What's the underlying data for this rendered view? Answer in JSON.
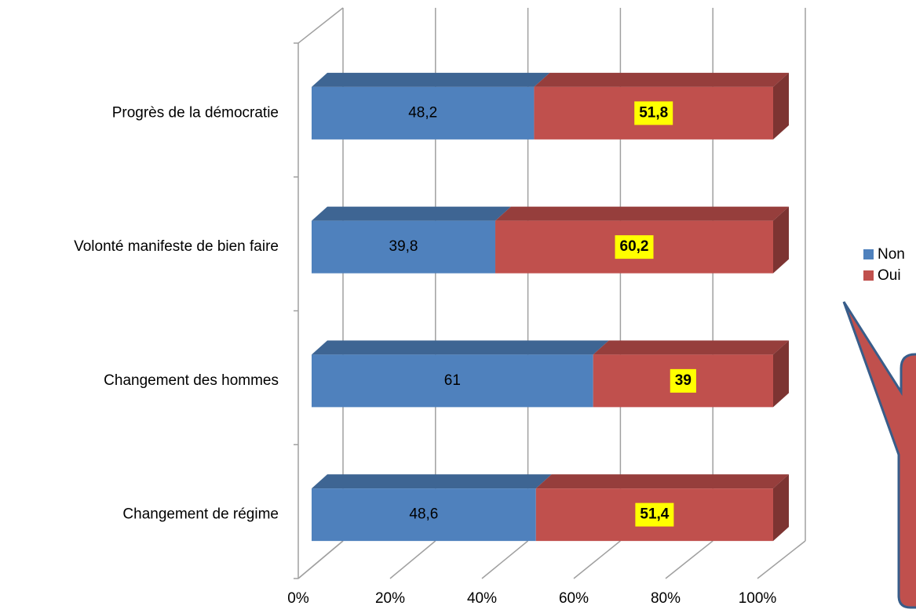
{
  "chart_data": {
    "type": "stacked_bar_horizontal_3d",
    "categories": [
      "Progrès de la démocratie",
      "Volonté manifeste de bien faire",
      "Changement des hommes",
      "Changement de régime"
    ],
    "series": [
      {
        "name": "Non",
        "color": "#4f81bd",
        "values": [
          48.2,
          39.8,
          61,
          48.6
        ],
        "value_labels": [
          "48,2",
          "39,8",
          "61",
          "48,6"
        ]
      },
      {
        "name": "Oui",
        "color": "#c0504d",
        "values": [
          51.8,
          60.2,
          39,
          51.4
        ],
        "value_labels": [
          "51,8",
          "60,2",
          "39",
          "51,4"
        ]
      }
    ],
    "xlim": [
      0,
      100
    ],
    "xticks": [
      {
        "value": 0,
        "label": "0%"
      },
      {
        "value": 20,
        "label": "20%"
      },
      {
        "value": 40,
        "label": "40%"
      },
      {
        "value": 60,
        "label": "60%"
      },
      {
        "value": 80,
        "label": "80%"
      },
      {
        "value": 100,
        "label": "100%"
      }
    ],
    "grid": true,
    "legend": "right"
  }
}
